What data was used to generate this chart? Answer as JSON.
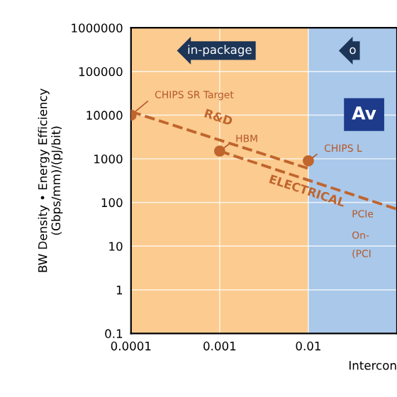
{
  "chart_data": {
    "type": "scatter",
    "xlabel": "Intercon",
    "ylabel": "BW Density • Energy Efficiency\n(Gbps/mm)/(pJ/bit)",
    "log": "xy",
    "xlim": [
      0.0001,
      0.1
    ],
    "ylim": [
      0.1,
      1000000
    ],
    "xticks": [
      0.0001,
      0.001,
      0.01
    ],
    "yticks": [
      {
        "value": 0.1,
        "label": "0.1"
      },
      {
        "value": 1,
        "label": "1"
      },
      {
        "value": 10,
        "label": "10"
      },
      {
        "value": 100,
        "label": "100"
      },
      {
        "value": 1000,
        "label": "1000"
      },
      {
        "value": 10000,
        "label": "10000"
      },
      {
        "value": 100000,
        "label": "100000"
      },
      {
        "value": 1000000,
        "label": "1000000"
      }
    ],
    "grid": true,
    "series": [
      {
        "color": "#c0652d",
        "x": [
          0.0001,
          0.001,
          0.01
        ],
        "values": [
          10000,
          1500,
          900
        ]
      },
      {
        "type": "line",
        "name": "R&D",
        "color": "#c0652d",
        "line_style": "dashed",
        "x": [
          0.0001,
          0.01
        ],
        "values": [
          12000,
          600
        ]
      },
      {
        "type": "line",
        "name": "ELECTRICAL",
        "color": "#c0652d",
        "line_style": "dashed",
        "x": [
          0.001,
          0.1
        ],
        "values": [
          1500,
          70
        ]
      }
    ],
    "bands": [
      {
        "axis": "x",
        "from": 0.0001,
        "to": 0.01,
        "label": "in-package",
        "color": "#fbcb8f"
      },
      {
        "axis": "x",
        "from": 0.01,
        "to": 0.1,
        "label": "o",
        "color": "#a9c8ea"
      }
    ],
    "annotations": [
      {
        "text": "CHIPS SR Target",
        "x": 0.0001,
        "y": 10000
      },
      {
        "text": "HBM",
        "x": 0.001,
        "y": 1500
      },
      {
        "text": "CHIPS L",
        "x": 0.01,
        "y": 900
      },
      "Av",
      "PCIe",
      "On-",
      "(PCI"
    ]
  }
}
